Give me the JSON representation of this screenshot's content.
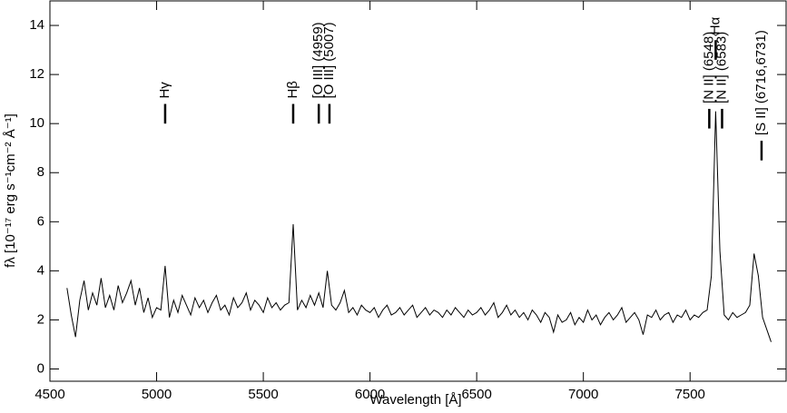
{
  "chart_data": {
    "type": "line",
    "xlabel": "Wavelength [Å]",
    "ylabel": "fλ [10⁻¹⁷ erg s⁻¹cm⁻² Å⁻¹]",
    "xlim": [
      4500,
      7950
    ],
    "ylim": [
      -0.5,
      15
    ],
    "xticks": [
      4500,
      5000,
      5500,
      6000,
      6500,
      7000,
      7500
    ],
    "yticks": [
      0,
      2,
      4,
      6,
      8,
      10,
      12,
      14
    ],
    "annotations": [
      {
        "text": "Hγ",
        "x": 5040,
        "y": 10
      },
      {
        "text": "Hβ",
        "x": 5640,
        "y": 10
      },
      {
        "text": "[O III] (4959)",
        "x": 5760,
        "y": 10
      },
      {
        "text": "[O III] (5007)",
        "x": 5810,
        "y": 10
      },
      {
        "text": "[N II] (6548)",
        "x": 7590,
        "y": 9.8
      },
      {
        "text": "Hα",
        "x": 7620,
        "y": 12.6
      },
      {
        "text": "[N II] (6583)",
        "x": 7650,
        "y": 9.8
      },
      {
        "text": "[S II] (6716,6731)",
        "x": 7835,
        "y": 8.5
      }
    ],
    "series": [
      {
        "color": "#000000",
        "x": [
          4580,
          4600,
          4620,
          4640,
          4660,
          4680,
          4700,
          4720,
          4740,
          4760,
          4780,
          4800,
          4820,
          4840,
          4860,
          4880,
          4900,
          4920,
          4940,
          4960,
          4980,
          5000,
          5020,
          5040,
          5060,
          5080,
          5100,
          5120,
          5140,
          5160,
          5180,
          5200,
          5220,
          5240,
          5260,
          5280,
          5300,
          5320,
          5340,
          5360,
          5380,
          5400,
          5420,
          5440,
          5460,
          5480,
          5500,
          5520,
          5540,
          5560,
          5580,
          5600,
          5620,
          5640,
          5660,
          5680,
          5700,
          5720,
          5740,
          5760,
          5780,
          5800,
          5820,
          5840,
          5860,
          5880,
          5900,
          5920,
          5940,
          5960,
          5980,
          6000,
          6020,
          6040,
          6060,
          6080,
          6100,
          6120,
          6140,
          6160,
          6180,
          6200,
          6220,
          6240,
          6260,
          6280,
          6300,
          6320,
          6340,
          6360,
          6380,
          6400,
          6420,
          6440,
          6460,
          6480,
          6500,
          6520,
          6540,
          6560,
          6580,
          6600,
          6620,
          6640,
          6660,
          6680,
          6700,
          6720,
          6740,
          6760,
          6780,
          6800,
          6820,
          6840,
          6860,
          6880,
          6900,
          6920,
          6940,
          6960,
          6980,
          7000,
          7020,
          7040,
          7060,
          7080,
          7100,
          7120,
          7140,
          7160,
          7180,
          7200,
          7220,
          7240,
          7260,
          7280,
          7300,
          7320,
          7340,
          7360,
          7380,
          7400,
          7420,
          7440,
          7460,
          7480,
          7500,
          7520,
          7540,
          7560,
          7580,
          7600,
          7620,
          7640,
          7660,
          7680,
          7700,
          7720,
          7740,
          7760,
          7780,
          7800,
          7820,
          7840,
          7860,
          7880
        ],
        "values": [
          3.3,
          2.2,
          1.3,
          2.8,
          3.6,
          2.4,
          3.1,
          2.6,
          3.7,
          2.5,
          3.0,
          2.4,
          3.4,
          2.7,
          3.1,
          3.6,
          2.6,
          3.3,
          2.3,
          2.9,
          2.1,
          2.5,
          2.4,
          4.2,
          2.1,
          2.8,
          2.3,
          3.0,
          2.6,
          2.2,
          2.9,
          2.5,
          2.8,
          2.3,
          2.7,
          3.0,
          2.4,
          2.6,
          2.2,
          2.9,
          2.5,
          2.7,
          3.1,
          2.4,
          2.8,
          2.6,
          2.3,
          2.9,
          2.5,
          2.7,
          2.4,
          2.6,
          2.7,
          5.9,
          2.4,
          2.8,
          2.5,
          3.0,
          2.6,
          3.1,
          2.5,
          4.0,
          2.6,
          2.4,
          2.7,
          3.2,
          2.3,
          2.5,
          2.2,
          2.6,
          2.4,
          2.3,
          2.5,
          2.1,
          2.4,
          2.6,
          2.2,
          2.3,
          2.5,
          2.2,
          2.4,
          2.6,
          2.1,
          2.3,
          2.5,
          2.2,
          2.4,
          2.3,
          2.1,
          2.4,
          2.2,
          2.5,
          2.3,
          2.1,
          2.4,
          2.2,
          2.3,
          2.5,
          2.2,
          2.4,
          2.7,
          2.1,
          2.3,
          2.6,
          2.2,
          2.4,
          2.1,
          2.3,
          2.0,
          2.4,
          2.2,
          1.9,
          2.3,
          2.1,
          1.5,
          2.2,
          1.9,
          2.0,
          2.3,
          1.8,
          2.1,
          1.9,
          2.4,
          2.0,
          2.2,
          1.8,
          2.1,
          2.3,
          2.0,
          2.2,
          2.5,
          1.9,
          2.1,
          2.3,
          2.0,
          1.4,
          2.2,
          2.1,
          2.4,
          2.0,
          2.2,
          2.3,
          1.9,
          2.2,
          2.1,
          2.4,
          2.0,
          2.2,
          2.1,
          2.3,
          2.4,
          3.8,
          10.5,
          4.8,
          2.2,
          2.0,
          2.3,
          2.1,
          2.2,
          2.3,
          2.6,
          4.7,
          3.8,
          2.1,
          1.6,
          1.1
        ]
      }
    ]
  }
}
